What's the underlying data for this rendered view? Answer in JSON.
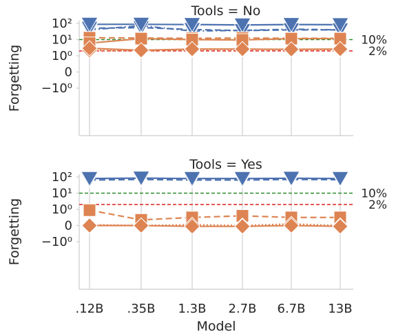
{
  "chart_data": [
    {
      "type": "line",
      "title": "Tools = No",
      "xlabel": "",
      "ylabel": "Forgetting",
      "yscale": "symlog",
      "ylim": [
        -10,
        100
      ],
      "x_tick_labels": [
        ".12B",
        ".35B",
        "1.3B",
        "2.7B",
        "6.7B",
        "13B"
      ],
      "y_tick_labels": [
        "10²",
        "10¹",
        "10⁰",
        "0",
        "−10⁰"
      ],
      "grid": "vertical",
      "reference_lines": [
        {
          "label": "10%",
          "y": 10,
          "color": "#2a8a2a"
        },
        {
          "label": "2%",
          "y": 2,
          "color": "#e0312e"
        }
      ],
      "series": [
        {
          "color": "#4c72b0",
          "marker": "triangle-down",
          "linestyle": "dashdot",
          "values": [
            40,
            72,
            34,
            37,
            44,
            40
          ]
        },
        {
          "color": "#4c72b0",
          "marker": "triangle-down",
          "linestyle": "dashed",
          "values": [
            50,
            55,
            42,
            36,
            40,
            40
          ]
        },
        {
          "color": "#4c72b0",
          "marker": "triangle-down",
          "linestyle": "solid",
          "values": [
            88,
            88,
            85,
            80,
            85,
            83
          ]
        },
        {
          "color": "#dd8452",
          "marker": "square",
          "linestyle": "dashed",
          "values": [
            13,
            12.5,
            12,
            12.5,
            12,
            12
          ]
        },
        {
          "color": "#dd8452",
          "marker": "square",
          "linestyle": "solid",
          "values": [
            6,
            11.5,
            10,
            9.5,
            11.5,
            11.5
          ]
        },
        {
          "color": "#dd8452",
          "marker": "diamond",
          "linestyle": "dotted",
          "values": [
            2.2,
            2.0,
            2.4,
            2.5,
            2.4,
            2.4
          ]
        },
        {
          "color": "#dd8452",
          "marker": "diamond",
          "linestyle": "solid",
          "values": [
            2.9,
            2.2,
            2.6,
            2.6,
            2.5,
            2.6
          ]
        }
      ]
    },
    {
      "type": "line",
      "title": "Tools = Yes",
      "xlabel": "Model",
      "ylabel": "Forgetting",
      "yscale": "symlog",
      "ylim": [
        -10,
        100
      ],
      "x_tick_labels": [
        ".12B",
        ".35B",
        "1.3B",
        "2.7B",
        "6.7B",
        "13B"
      ],
      "y_tick_labels": [
        "10²",
        "10¹",
        "10⁰",
        "0",
        "−10⁰"
      ],
      "grid": "vertical",
      "reference_lines": [
        {
          "label": "10%",
          "y": 10,
          "color": "#2a8a2a"
        },
        {
          "label": "2%",
          "y": 2,
          "color": "#e0312e"
        }
      ],
      "series": [
        {
          "color": "#4c72b0",
          "marker": "triangle-down",
          "linestyle": "dashed",
          "values": [
            65,
            70,
            65,
            65,
            70,
            68
          ]
        },
        {
          "color": "#4c72b0",
          "marker": "triangle-down",
          "linestyle": "solid",
          "values": [
            80,
            85,
            80,
            80,
            83,
            80
          ]
        },
        {
          "color": "#dd8452",
          "marker": "square",
          "linestyle": "dashed",
          "values": [
            0.95,
            0.35,
            0.5,
            0.6,
            0.5,
            0.5
          ]
        },
        {
          "color": "#dd8452",
          "marker": "diamond",
          "linestyle": "dotted",
          "values": [
            0.05,
            0.0,
            0.05,
            0.0,
            0.1,
            0.0
          ]
        },
        {
          "color": "#dd8452",
          "marker": "diamond",
          "linestyle": "solid",
          "values": [
            0.0,
            0.0,
            -0.05,
            -0.05,
            0.0,
            -0.05
          ]
        }
      ]
    }
  ]
}
